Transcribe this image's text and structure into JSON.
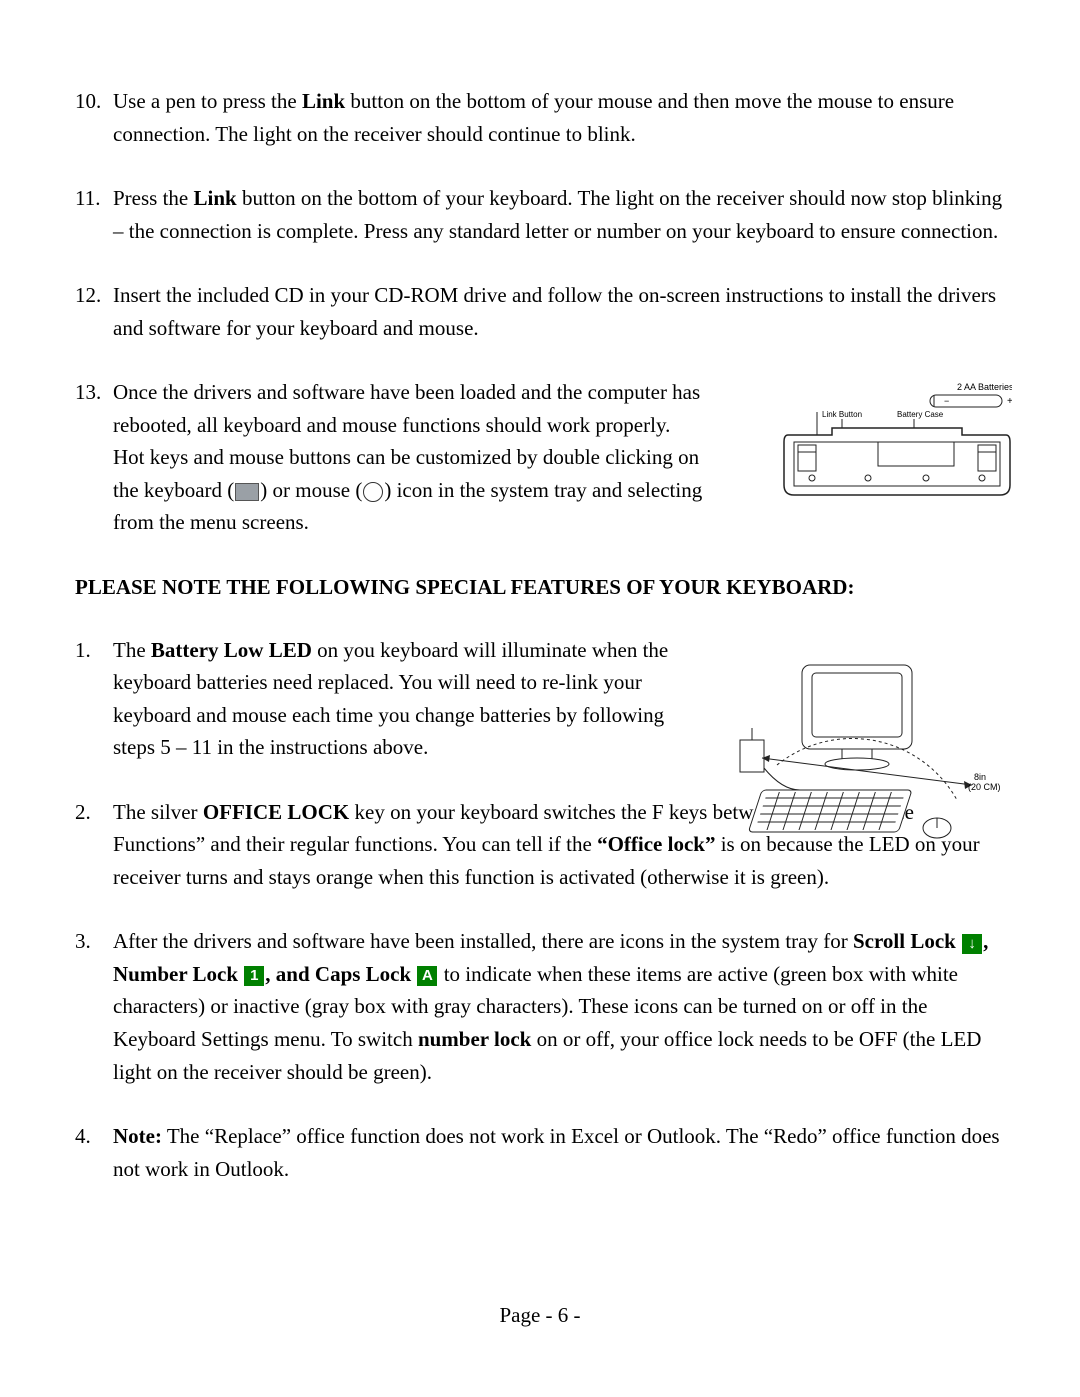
{
  "list_top": [
    {
      "num": "10.",
      "parts": [
        {
          "t": "Use a pen to press the "
        },
        {
          "t": "Link",
          "b": true
        },
        {
          "t": " button on the bottom of your mouse and then move the mouse to ensure connection.  The light on the receiver should continue to blink."
        }
      ]
    },
    {
      "num": "11.",
      "parts": [
        {
          "t": "Press the "
        },
        {
          "t": "Link",
          "b": true
        },
        {
          "t": " button on the bottom of your keyboard.  The light on the receiver should now stop blinking – the connection is complete.  Press any standard letter or number on your keyboard to ensure connection."
        }
      ]
    },
    {
      "num": "12.",
      "parts": [
        {
          "t": "Insert the included CD in your CD-ROM drive and follow the on-screen instructions to install the drivers and software for your keyboard and mouse."
        }
      ]
    },
    {
      "num": "13.",
      "narrow": true,
      "parts": [
        {
          "t": "Once the drivers and software have been loaded and the computer has rebooted, all keyboard and mouse functions should work properly.   Hot keys and mouse buttons can be customized by double clicking on the keyboard ("
        },
        {
          "icon": "kbd"
        },
        {
          "t": ") or mouse ("
        },
        {
          "icon": "mouse"
        },
        {
          "t": ") icon in the system tray and selecting from the menu screens."
        }
      ]
    }
  ],
  "section_title": "PLEASE NOTE THE FOLLOWING SPECIAL FEATURES OF YOUR KEYBOARD:",
  "list_features": [
    {
      "num": "1.",
      "narrow": true,
      "parts": [
        {
          "t": "The "
        },
        {
          "t": "Battery Low LED",
          "b": true
        },
        {
          "t": " on you keyboard will illuminate when the keyboard batteries need replaced.  You will need to re-link your keyboard and mouse each time you change batteries by following steps 5 – 11 in the instructions above."
        }
      ]
    },
    {
      "num": "2.",
      "parts": [
        {
          "t": "The silver "
        },
        {
          "t": "OFFICE LOCK",
          "b": true
        },
        {
          "t": " key on your keyboard switches the F keys between special “Office Functions” and their regular functions.  You can tell if the "
        },
        {
          "t": "“Office lock”",
          "b": true
        },
        {
          "t": " is on because the LED on your receiver turns and stays orange when this function is activated (otherwise it is green)."
        }
      ],
      "first_narrow_lines": 2
    },
    {
      "num": "3.",
      "parts": [
        {
          "t": "After the drivers and software have been installed, there are icons in the system tray for "
        },
        {
          "t": "Scroll Lock ",
          "b": true
        },
        {
          "lock": "↓"
        },
        {
          "t": ", Number Lock ",
          "b": true
        },
        {
          "lock": "1"
        },
        {
          "t": ", and Caps Lock ",
          "b": true
        },
        {
          "lock": "A"
        },
        {
          "t": " to indicate when these items are active (green box with white characters) or inactive (gray box with gray characters). These icons can be turned on or off in the Keyboard Settings menu. To switch "
        },
        {
          "t": "number lock",
          "b": true
        },
        {
          "t": " on or off, your office lock needs to be OFF (the LED light on the receiver should be green)."
        }
      ]
    },
    {
      "num": "4.",
      "parts": [
        {
          "t": "Note:",
          "b": true
        },
        {
          "t": " The “Replace” office function does not work in Excel or Outlook. The “Redo” office function does not work in Outlook."
        }
      ]
    }
  ],
  "figures": {
    "kbd_back": {
      "caption_top": "2 AA Batteries",
      "label_left": "Link Button",
      "label_right": "Battery Case"
    },
    "desk": {
      "range_label": "8in\n(20 CM)"
    }
  },
  "footer": {
    "prefix": "Page - ",
    "num": "6",
    "suffix": " -"
  },
  "colors": {
    "text": "#000000",
    "background": "#ffffff",
    "lock_icon_bg": "#008000",
    "lock_icon_fg": "#ffffff",
    "fig_line": "#222222"
  },
  "typography": {
    "family": "Times New Roman",
    "size_pt": 16,
    "bold_weight": 700
  }
}
